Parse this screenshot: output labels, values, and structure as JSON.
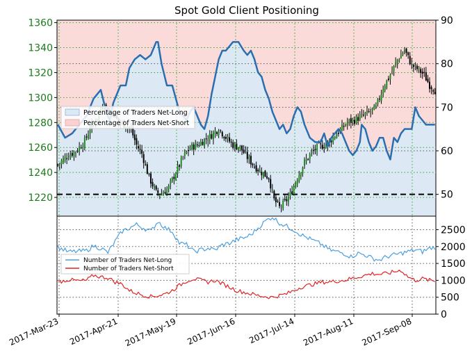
{
  "chart_data": [
    {
      "type": "candlestick",
      "title": "Spot Gold Client Positioning",
      "x_tick_labels": [
        "2017-Mar-23",
        "2017-Apr-21",
        "2017-May-19",
        "2017-Jun-16",
        "2017-Jul-14",
        "2017-Aug-11",
        "2017-Sep-08"
      ],
      "left_axis": {
        "ticks": [
          1220,
          1240,
          1260,
          1280,
          1300,
          1320,
          1340,
          1360
        ],
        "ylim": [
          1205,
          1362
        ],
        "color": "#1a7a1a"
      },
      "right_axis": {
        "ticks": [
          50,
          60,
          70,
          80,
          90
        ],
        "ylim": [
          45,
          90
        ]
      },
      "grid": true,
      "legend": {
        "position": "left",
        "entries": [
          "Percentage of Traders Net-Long",
          "Percentage of Traders Net-Short"
        ]
      },
      "reference_line": {
        "value": 50,
        "style": "dashed",
        "color": "#000000"
      },
      "colors": {
        "net_long_fill": "#dce9f5",
        "net_short_fill": "#fbdada",
        "pct_line": "#2a6eb0",
        "grid_green": "#2ea82e",
        "grid_dark": "#555555"
      },
      "price_anchors": [
        [
          0,
          1246
        ],
        [
          5,
          1253
        ],
        [
          10,
          1257
        ],
        [
          15,
          1265
        ],
        [
          18,
          1275
        ],
        [
          22,
          1284
        ],
        [
          26,
          1296
        ],
        [
          28,
          1288
        ],
        [
          31,
          1288
        ],
        [
          34,
          1280
        ],
        [
          38,
          1278
        ],
        [
          41,
          1274
        ],
        [
          44,
          1262
        ],
        [
          47,
          1255
        ],
        [
          51,
          1236
        ],
        [
          55,
          1224
        ],
        [
          58,
          1223
        ],
        [
          62,
          1228
        ],
        [
          66,
          1240
        ],
        [
          70,
          1252
        ],
        [
          74,
          1260
        ],
        [
          78,
          1262
        ],
        [
          82,
          1266
        ],
        [
          86,
          1270
        ],
        [
          90,
          1275
        ],
        [
          94,
          1268
        ],
        [
          98,
          1262
        ],
        [
          102,
          1260
        ],
        [
          106,
          1252
        ],
        [
          110,
          1245
        ],
        [
          114,
          1240
        ],
        [
          118,
          1236
        ],
        [
          121,
          1218
        ],
        [
          124,
          1212
        ],
        [
          127,
          1216
        ],
        [
          130,
          1222
        ],
        [
          134,
          1236
        ],
        [
          138,
          1248
        ],
        [
          142,
          1256
        ],
        [
          146,
          1261
        ],
        [
          150,
          1262
        ],
        [
          154,
          1268
        ],
        [
          158,
          1274
        ],
        [
          162,
          1280
        ],
        [
          166,
          1282
        ],
        [
          170,
          1285
        ],
        [
          174,
          1288
        ],
        [
          178,
          1292
        ],
        [
          182,
          1308
        ],
        [
          186,
          1318
        ],
        [
          190,
          1330
        ],
        [
          194,
          1338
        ],
        [
          198,
          1326
        ],
        [
          202,
          1322
        ],
        [
          205,
          1318
        ],
        [
          208,
          1310
        ],
        [
          211,
          1306
        ]
      ],
      "pct_net_long_anchors": [
        [
          0,
          66
        ],
        [
          4,
          63
        ],
        [
          8,
          64
        ],
        [
          12,
          66
        ],
        [
          16,
          68
        ],
        [
          20,
          72
        ],
        [
          24,
          74
        ],
        [
          27,
          69
        ],
        [
          29,
          67
        ],
        [
          31,
          71
        ],
        [
          35,
          75
        ],
        [
          38,
          75
        ],
        [
          40,
          79
        ],
        [
          43,
          81
        ],
        [
          46,
          82
        ],
        [
          49,
          81
        ],
        [
          52,
          82
        ],
        [
          55,
          85
        ],
        [
          56,
          85
        ],
        [
          58,
          80
        ],
        [
          61,
          75
        ],
        [
          64,
          75
        ],
        [
          66,
          72
        ],
        [
          68,
          69
        ],
        [
          70,
          68
        ],
        [
          72,
          67
        ],
        [
          74,
          69
        ],
        [
          76,
          70
        ],
        [
          78,
          68
        ],
        [
          80,
          66
        ],
        [
          82,
          65
        ],
        [
          84,
          68
        ],
        [
          86,
          73
        ],
        [
          88,
          77
        ],
        [
          90,
          81
        ],
        [
          92,
          83
        ],
        [
          94,
          83
        ],
        [
          96,
          84
        ],
        [
          98,
          85
        ],
        [
          101,
          85
        ],
        [
          104,
          83
        ],
        [
          106,
          82
        ],
        [
          108,
          83
        ],
        [
          110,
          81
        ],
        [
          112,
          78
        ],
        [
          114,
          77
        ],
        [
          116,
          74
        ],
        [
          118,
          72
        ],
        [
          120,
          69
        ],
        [
          122,
          67
        ],
        [
          124,
          65
        ],
        [
          126,
          66
        ],
        [
          128,
          64
        ],
        [
          130,
          65
        ],
        [
          132,
          68
        ],
        [
          134,
          70
        ],
        [
          136,
          69
        ],
        [
          138,
          66
        ],
        [
          141,
          63
        ],
        [
          144,
          62
        ],
        [
          147,
          62
        ],
        [
          149,
          64
        ],
        [
          151,
          61
        ],
        [
          153,
          63
        ],
        [
          155,
          64
        ],
        [
          157,
          65
        ],
        [
          159,
          64
        ],
        [
          161,
          62
        ],
        [
          163,
          60
        ],
        [
          165,
          59
        ],
        [
          167,
          60
        ],
        [
          169,
          62
        ],
        [
          170,
          66
        ],
        [
          172,
          65
        ],
        [
          174,
          62
        ],
        [
          176,
          60
        ],
        [
          178,
          61
        ],
        [
          180,
          63
        ],
        [
          182,
          63
        ],
        [
          184,
          60
        ],
        [
          186,
          58
        ],
        [
          188,
          63
        ],
        [
          190,
          62
        ],
        [
          192,
          64
        ],
        [
          194,
          65
        ],
        [
          196,
          65
        ],
        [
          198,
          65
        ],
        [
          200,
          70
        ],
        [
          202,
          68
        ],
        [
          204,
          67
        ],
        [
          206,
          66
        ],
        [
          207,
          66
        ]
      ]
    },
    {
      "type": "line",
      "right_axis": {
        "ticks": [
          0,
          500,
          1000,
          1500,
          2000,
          2500
        ],
        "ylim": [
          0,
          2900
        ]
      },
      "legend": {
        "position": "left",
        "entries": [
          "Number of Traders Net-Long",
          "Number of Traders Net-Short"
        ]
      },
      "grid": true,
      "series": [
        {
          "name": "Number of Traders Net-Long",
          "color": "#4a9fe0",
          "anchors": [
            [
              0,
              1980
            ],
            [
              6,
              1840
            ],
            [
              12,
              1860
            ],
            [
              16,
              1880
            ],
            [
              20,
              2020
            ],
            [
              24,
              1950
            ],
            [
              28,
              1820
            ],
            [
              32,
              2150
            ],
            [
              36,
              2450
            ],
            [
              40,
              2550
            ],
            [
              44,
              2650
            ],
            [
              48,
              2550
            ],
            [
              52,
              2450
            ],
            [
              56,
              2750
            ],
            [
              60,
              2550
            ],
            [
              64,
              2450
            ],
            [
              68,
              2100
            ],
            [
              72,
              2050
            ],
            [
              76,
              1850
            ],
            [
              80,
              1900
            ],
            [
              84,
              1950
            ],
            [
              88,
              1900
            ],
            [
              92,
              2050
            ],
            [
              96,
              2100
            ],
            [
              100,
              2200
            ],
            [
              104,
              2250
            ],
            [
              108,
              2350
            ],
            [
              112,
              2550
            ],
            [
              116,
              2750
            ],
            [
              120,
              2880
            ],
            [
              124,
              2700
            ],
            [
              128,
              2600
            ],
            [
              132,
              2500
            ],
            [
              136,
              2350
            ],
            [
              140,
              2250
            ],
            [
              144,
              2150
            ],
            [
              148,
              2050
            ],
            [
              152,
              1900
            ],
            [
              156,
              1850
            ],
            [
              160,
              1800
            ],
            [
              164,
              1700
            ],
            [
              168,
              1800
            ],
            [
              172,
              1750
            ],
            [
              176,
              1650
            ],
            [
              180,
              1600
            ],
            [
              184,
              1700
            ],
            [
              188,
              1750
            ],
            [
              192,
              1800
            ],
            [
              196,
              1850
            ],
            [
              200,
              1900
            ],
            [
              204,
              1850
            ],
            [
              208,
              1950
            ],
            [
              211,
              1980
            ]
          ]
        },
        {
          "name": "Number of Traders Net-Short",
          "color": "#e02424",
          "anchors": [
            [
              0,
              950
            ],
            [
              6,
              1020
            ],
            [
              12,
              980
            ],
            [
              16,
              1000
            ],
            [
              20,
              1150
            ],
            [
              24,
              1100
            ],
            [
              28,
              1080
            ],
            [
              32,
              950
            ],
            [
              36,
              880
            ],
            [
              40,
              700
            ],
            [
              44,
              620
            ],
            [
              48,
              560
            ],
            [
              52,
              520
            ],
            [
              56,
              550
            ],
            [
              60,
              600
            ],
            [
              64,
              700
            ],
            [
              68,
              850
            ],
            [
              72,
              980
            ],
            [
              76,
              1050
            ],
            [
              80,
              1000
            ],
            [
              84,
              950
            ],
            [
              88,
              1000
            ],
            [
              92,
              900
            ],
            [
              96,
              800
            ],
            [
              100,
              700
            ],
            [
              104,
              650
            ],
            [
              108,
              600
            ],
            [
              112,
              550
            ],
            [
              116,
              520
            ],
            [
              120,
              500
            ],
            [
              124,
              550
            ],
            [
              128,
              600
            ],
            [
              132,
              700
            ],
            [
              136,
              800
            ],
            [
              140,
              850
            ],
            [
              144,
              900
            ],
            [
              148,
              950
            ],
            [
              152,
              950
            ],
            [
              156,
              980
            ],
            [
              160,
              1000
            ],
            [
              164,
              1050
            ],
            [
              168,
              1100
            ],
            [
              172,
              1150
            ],
            [
              176,
              1200
            ],
            [
              180,
              1180
            ],
            [
              184,
              1200
            ],
            [
              188,
              1250
            ],
            [
              192,
              1300
            ],
            [
              196,
              1100
            ],
            [
              200,
              1000
            ],
            [
              204,
              1050
            ],
            [
              208,
              1000
            ],
            [
              211,
              980
            ]
          ]
        }
      ]
    }
  ]
}
